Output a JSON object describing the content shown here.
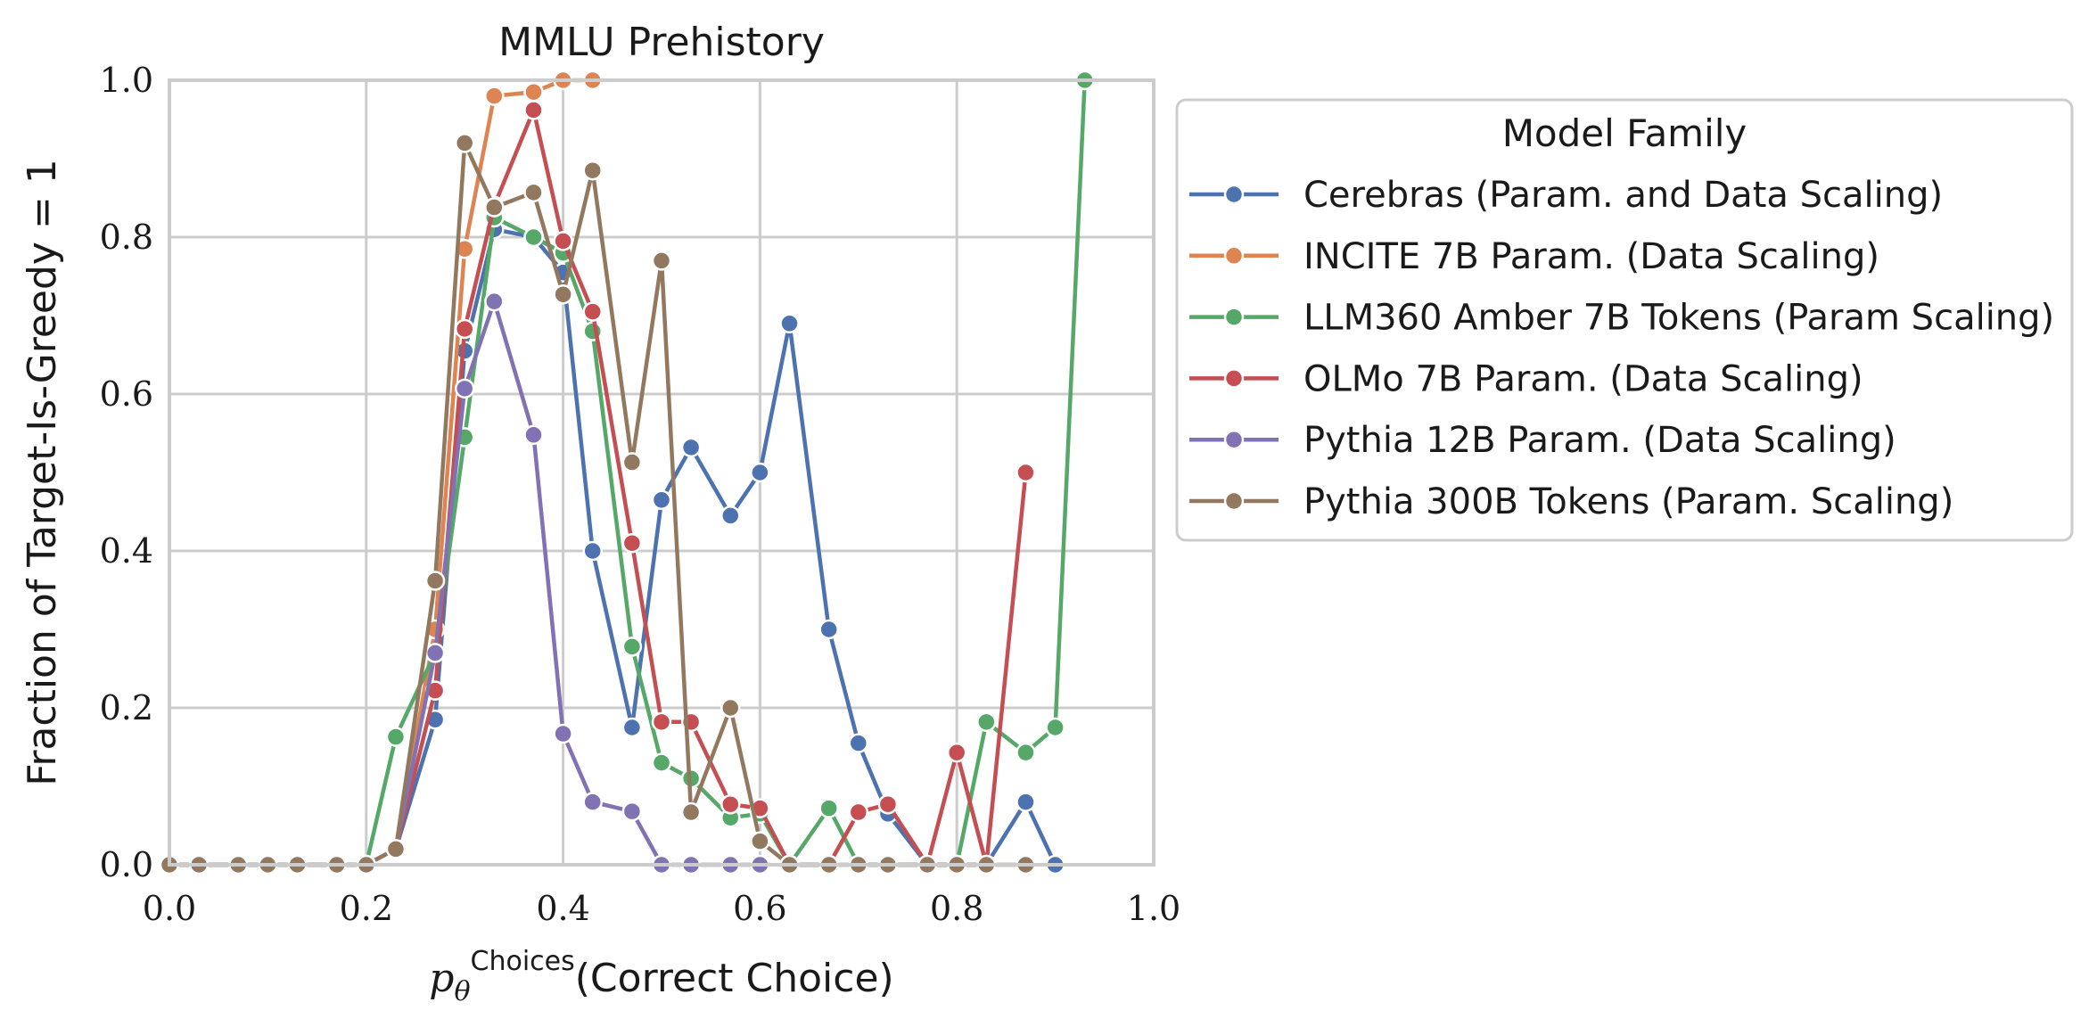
{
  "chart_data": {
    "type": "line",
    "title": "MMLU Prehistory",
    "xlabel_symbol": "p",
    "xlabel_subscript": "θ",
    "xlabel_superscript": "Choices",
    "xlabel_text": "(Correct Choice)",
    "ylabel": "Fraction of Target-Is-Greedy = 1",
    "xlim": [
      0.0,
      1.0
    ],
    "ylim": [
      0.0,
      1.0
    ],
    "xticks": [
      "0.0",
      "0.2",
      "0.4",
      "0.6",
      "0.8",
      "1.0"
    ],
    "yticks": [
      "0.0",
      "0.2",
      "0.4",
      "0.6",
      "0.8",
      "1.0"
    ],
    "grid": true,
    "legend_title": "Model Family",
    "legend_placement": "outside-right",
    "series": [
      {
        "name": "Cerebras (Param. and Data Scaling)",
        "color": "#4c72b0",
        "points": [
          [
            0.0,
            0.0
          ],
          [
            0.03,
            0.0
          ],
          [
            0.07,
            0.0
          ],
          [
            0.1,
            0.0
          ],
          [
            0.13,
            0.0
          ],
          [
            0.17,
            0.0
          ],
          [
            0.2,
            0.0
          ],
          [
            0.23,
            0.02
          ],
          [
            0.27,
            0.185
          ],
          [
            0.3,
            0.655
          ],
          [
            0.33,
            0.81
          ],
          [
            0.37,
            0.8
          ],
          [
            0.4,
            0.755
          ],
          [
            0.43,
            0.4
          ],
          [
            0.47,
            0.175
          ],
          [
            0.5,
            0.465
          ],
          [
            0.53,
            0.532
          ],
          [
            0.57,
            0.445
          ],
          [
            0.6,
            0.5
          ],
          [
            0.63,
            0.69
          ],
          [
            0.67,
            0.3
          ],
          [
            0.7,
            0.155
          ],
          [
            0.73,
            0.065
          ],
          [
            0.77,
            0.0
          ],
          [
            0.8,
            0.0
          ],
          [
            0.83,
            0.0
          ],
          [
            0.87,
            0.08
          ],
          [
            0.9,
            0.0
          ]
        ]
      },
      {
        "name": "INCITE 7B Param. (Data Scaling)",
        "color": "#dd8452",
        "points": [
          [
            0.23,
            0.02
          ],
          [
            0.27,
            0.3
          ],
          [
            0.3,
            0.785
          ],
          [
            0.33,
            0.98
          ],
          [
            0.37,
            0.985
          ],
          [
            0.4,
            1.0
          ],
          [
            0.43,
            1.0
          ]
        ]
      },
      {
        "name": "LLM360 Amber 7B Tokens (Param Scaling)",
        "color": "#55a868",
        "points": [
          [
            0.2,
            0.0
          ],
          [
            0.23,
            0.163
          ],
          [
            0.27,
            0.27
          ],
          [
            0.3,
            0.545
          ],
          [
            0.33,
            0.825
          ],
          [
            0.37,
            0.8
          ],
          [
            0.4,
            0.78
          ],
          [
            0.43,
            0.68
          ],
          [
            0.47,
            0.278
          ],
          [
            0.5,
            0.13
          ],
          [
            0.53,
            0.11
          ],
          [
            0.57,
            0.06
          ],
          [
            0.6,
            0.065
          ],
          [
            0.63,
            0.0
          ],
          [
            0.67,
            0.072
          ],
          [
            0.7,
            0.0
          ],
          [
            0.73,
            0.0
          ],
          [
            0.77,
            0.0
          ],
          [
            0.8,
            0.0
          ],
          [
            0.83,
            0.182
          ],
          [
            0.87,
            0.143
          ],
          [
            0.9,
            0.175
          ],
          [
            0.93,
            1.0
          ]
        ]
      },
      {
        "name": "OLMo 7B Param. (Data Scaling)",
        "color": "#c44e52",
        "points": [
          [
            0.23,
            0.02
          ],
          [
            0.27,
            0.222
          ],
          [
            0.3,
            0.683
          ],
          [
            0.33,
            0.84
          ],
          [
            0.37,
            0.962
          ],
          [
            0.4,
            0.795
          ],
          [
            0.43,
            0.705
          ],
          [
            0.47,
            0.41
          ],
          [
            0.5,
            0.182
          ],
          [
            0.53,
            0.182
          ],
          [
            0.57,
            0.077
          ],
          [
            0.6,
            0.072
          ],
          [
            0.63,
            0.0
          ],
          [
            0.67,
            0.0
          ],
          [
            0.7,
            0.067
          ],
          [
            0.73,
            0.077
          ],
          [
            0.77,
            0.0
          ],
          [
            0.8,
            0.143
          ],
          [
            0.83,
            0.0
          ],
          [
            0.87,
            0.5
          ]
        ]
      },
      {
        "name": "Pythia 12B Param. (Data Scaling)",
        "color": "#8172b3",
        "points": [
          [
            0.23,
            0.02
          ],
          [
            0.27,
            0.27
          ],
          [
            0.3,
            0.607
          ],
          [
            0.33,
            0.718
          ],
          [
            0.37,
            0.548
          ],
          [
            0.4,
            0.167
          ],
          [
            0.43,
            0.08
          ],
          [
            0.47,
            0.068
          ],
          [
            0.5,
            0.0
          ],
          [
            0.53,
            0.0
          ],
          [
            0.57,
            0.0
          ],
          [
            0.6,
            0.0
          ]
        ]
      },
      {
        "name": "Pythia 300B Tokens (Param. Scaling)",
        "color": "#937860",
        "points": [
          [
            0.0,
            0.0
          ],
          [
            0.03,
            0.0
          ],
          [
            0.07,
            0.0
          ],
          [
            0.1,
            0.0
          ],
          [
            0.13,
            0.0
          ],
          [
            0.17,
            0.0
          ],
          [
            0.2,
            0.0
          ],
          [
            0.23,
            0.02
          ],
          [
            0.27,
            0.362
          ],
          [
            0.3,
            0.92
          ],
          [
            0.33,
            0.838
          ],
          [
            0.37,
            0.857
          ],
          [
            0.4,
            0.727
          ],
          [
            0.43,
            0.885
          ],
          [
            0.47,
            0.513
          ],
          [
            0.5,
            0.77
          ],
          [
            0.53,
            0.067
          ],
          [
            0.57,
            0.2
          ],
          [
            0.6,
            0.03
          ],
          [
            0.63,
            0.0
          ],
          [
            0.67,
            0.0
          ],
          [
            0.7,
            0.0
          ],
          [
            0.73,
            0.0
          ],
          [
            0.77,
            0.0
          ],
          [
            0.8,
            0.0
          ],
          [
            0.83,
            0.0
          ],
          [
            0.87,
            0.0
          ]
        ]
      }
    ]
  }
}
